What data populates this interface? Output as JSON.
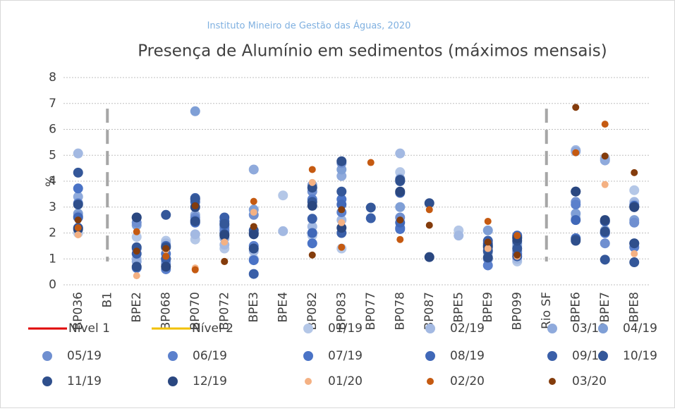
{
  "chart_data": {
    "type": "scatter",
    "subtitle": "Instituto Mineiro de Gestão das Águas, 2020",
    "title": "Presença de Alumínio em sedimentos (máximos mensais)",
    "y_label": "%",
    "categories": [
      "BP036",
      "B1",
      "BPE2",
      "BP068",
      "BP070",
      "BP072",
      "BPE3",
      "BPE4",
      "BP082",
      "BP083",
      "BP077",
      "BP078",
      "BP087",
      "BPE5",
      "BPE9",
      "BP099",
      "Rio SF",
      "BPE6",
      "BPE7",
      "BPE8"
    ],
    "ylim": [
      0,
      8
    ],
    "yticks": [
      0,
      1,
      2,
      3,
      4,
      5,
      6,
      7,
      8
    ],
    "grid": true,
    "series": [
      {
        "name": "Nível 1",
        "color": "#e00000",
        "kind": "line",
        "values": [
          null,
          null,
          null,
          null,
          null,
          null,
          null,
          null,
          null,
          null,
          null,
          null,
          null,
          null,
          null,
          null,
          null,
          null,
          null,
          null
        ]
      },
      {
        "name": "Nível 2",
        "color": "#f2c000",
        "kind": "line",
        "values": [
          null,
          null,
          null,
          null,
          null,
          null,
          null,
          null,
          null,
          null,
          null,
          null,
          null,
          null,
          null,
          null,
          null,
          null,
          null,
          null
        ]
      },
      {
        "name": "01/19",
        "color": "#b4c7e7",
        "values": [
          2.0,
          null,
          1.85,
          1.7,
          1.75,
          1.4,
          1.0,
          3.45,
          1.9,
          1.4,
          null,
          4.35,
          null,
          2.1,
          1.2,
          0.9,
          null,
          2.6,
          4.9,
          3.65
        ]
      },
      {
        "name": "02/19",
        "color": "#a3b9e2",
        "values": [
          5.07,
          null,
          1.0,
          1.6,
          1.95,
          1.55,
          1.3,
          2.07,
          2.25,
          2.5,
          null,
          5.07,
          null,
          1.9,
          1.35,
          1.0,
          null,
          5.2,
          4.85,
          3.2
        ]
      },
      {
        "name": "03/19",
        "color": "#8faadc",
        "values": [
          3.4,
          null,
          0.9,
          1.0,
          2.7,
          1.8,
          4.45,
          null,
          2.0,
          4.2,
          null,
          4.1,
          null,
          null,
          1.55,
          1.5,
          null,
          5.15,
          4.8,
          3.1
        ]
      },
      {
        "name": "04/19",
        "color": "#7f9fd6",
        "values": [
          2.75,
          null,
          2.3,
          0.9,
          6.7,
          2.0,
          2.9,
          null,
          3.85,
          4.45,
          null,
          3.0,
          null,
          null,
          2.1,
          1.6,
          null,
          2.75,
          2.1,
          2.5
        ]
      },
      {
        "name": "05/19",
        "color": "#6f8fd0",
        "values": [
          2.65,
          null,
          2.4,
          0.8,
          2.6,
          2.2,
          2.7,
          null,
          3.6,
          4.7,
          null,
          2.6,
          null,
          null,
          1.0,
          1.3,
          null,
          3.2,
          1.6,
          2.4
        ]
      },
      {
        "name": "06/19",
        "color": "#5b80cc",
        "values": [
          3.15,
          null,
          1.4,
          0.6,
          2.5,
          2.1,
          1.5,
          null,
          3.3,
          2.8,
          null,
          2.2,
          null,
          null,
          0.75,
          1.2,
          null,
          3.1,
          2.0,
          1.45
        ]
      },
      {
        "name": "07/19",
        "color": "#4a73c6",
        "values": [
          3.72,
          null,
          0.65,
          1.2,
          2.4,
          2.3,
          0.95,
          null,
          1.6,
          3.3,
          null,
          2.15,
          null,
          null,
          1.45,
          1.85,
          null,
          1.8,
          2.0,
          1.6
        ]
      },
      {
        "name": "08/19",
        "color": "#4068b8",
        "values": [
          2.6,
          null,
          2.6,
          1.5,
          3.2,
          2.45,
          2.0,
          null,
          2.0,
          3.1,
          null,
          2.4,
          null,
          null,
          1.6,
          1.9,
          null,
          2.5,
          2.45,
          3.05
        ]
      },
      {
        "name": "09/19",
        "color": "#3a5fa8",
        "values": [
          2.2,
          null,
          1.2,
          1.0,
          3.35,
          2.6,
          0.42,
          null,
          2.55,
          2.0,
          2.57,
          3.55,
          null,
          null,
          1.7,
          1.1,
          null,
          3.6,
          2.45,
          3.0
        ]
      },
      {
        "name": "10/19",
        "color": "#345799",
        "values": [
          4.33,
          null,
          1.45,
          2.7,
          3.3,
          2.35,
          2.1,
          null,
          3.2,
          3.6,
          2.98,
          4.0,
          null,
          null,
          1.3,
          1.4,
          null,
          1.75,
          0.97,
          0.87
        ]
      },
      {
        "name": "11/19",
        "color": "#2f4f8c",
        "values": [
          3.1,
          null,
          0.7,
          1.45,
          2.45,
          1.95,
          1.4,
          null,
          3.75,
          4.77,
          null,
          4.05,
          3.15,
          null,
          1.05,
          1.7,
          null,
          1.7,
          2.05,
          1.6
        ]
      },
      {
        "name": "12/19",
        "color": "#2a4780",
        "values": [
          2.15,
          null,
          2.6,
          0.7,
          3.0,
          1.9,
          1.95,
          null,
          3.05,
          2.2,
          null,
          3.6,
          1.07,
          null,
          1.5,
          1.8,
          null,
          3.6,
          2.5,
          3.0
        ]
      },
      {
        "name": "01/20",
        "color": "#f4b183",
        "values": [
          1.93,
          null,
          0.35,
          1.35,
          0.65,
          1.65,
          2.8,
          null,
          3.95,
          2.4,
          null,
          null,
          null,
          null,
          1.4,
          1.1,
          null,
          null,
          3.87,
          1.2
        ]
      },
      {
        "name": "02/20",
        "color": "#c55a11",
        "values": [
          2.2,
          null,
          2.05,
          1.1,
          0.58,
          0.9,
          3.22,
          null,
          4.45,
          1.45,
          4.72,
          1.75,
          2.9,
          null,
          2.45,
          1.9,
          null,
          5.1,
          6.2,
          null
        ]
      },
      {
        "name": "03/20",
        "color": "#843c0c",
        "values": [
          2.5,
          null,
          1.3,
          1.4,
          3.05,
          0.9,
          2.25,
          null,
          1.15,
          2.9,
          null,
          2.5,
          2.3,
          null,
          1.65,
          1.15,
          null,
          6.85,
          4.97,
          4.33
        ]
      }
    ]
  }
}
